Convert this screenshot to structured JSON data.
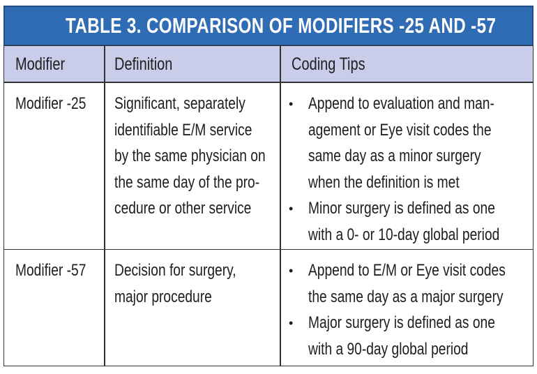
{
  "title": "TABLE 3. COMPARISON OF MODIFIERS -25 AND -57",
  "table": {
    "header": [
      "Modifier",
      "Definition",
      "Coding Tips"
    ],
    "rows": [
      {
        "modifier": "Modifier -25",
        "definition": [
          "Significant, separately",
          "identifiable E/M service",
          "by the same physician on",
          "the same day of the pro-",
          "cedure or other service"
        ],
        "tips": [
          [
            "Append to evaluation and man-",
            "agement or Eye visit codes the",
            "same day as a minor surgery",
            "when the definition is met"
          ],
          [
            "Minor surgery is defined as one",
            "with a 0- or 10-day global period"
          ]
        ]
      },
      {
        "modifier": "Modifier -57",
        "definition": [
          "Decision for surgery,",
          "major procedure"
        ],
        "tips": [
          [
            "Append to E/M or Eye visit codes",
            "the same day as a major surgery"
          ],
          [
            "Major surgery is defined as one",
            "with a 90-day global period"
          ]
        ]
      }
    ]
  }
}
